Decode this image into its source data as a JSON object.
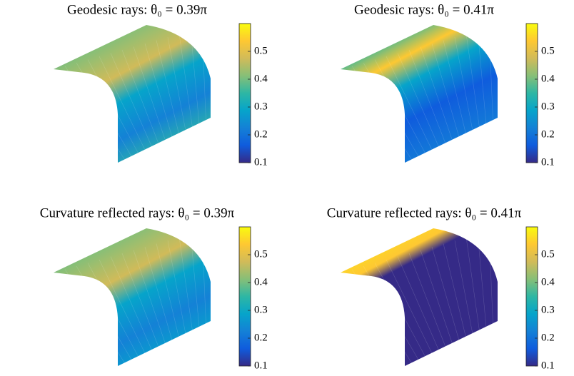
{
  "chart_data": [
    {
      "type": "surface",
      "title": "Geodesic rays: θ₀ = 0.39π",
      "clim": [
        0.1,
        0.6
      ],
      "cticks": [
        0.1,
        0.2,
        0.3,
        0.4,
        0.5
      ],
      "colormap": [
        "#352a87",
        "#0f5cdd",
        "#1481d6",
        "#06a4ca",
        "#2eb7a4",
        "#87bf77",
        "#d1bb59",
        "#fec832",
        "#f9fb0e"
      ]
    },
    {
      "type": "surface",
      "title": "Geodesic rays: θ₀ = 0.41π",
      "clim": [
        0.1,
        0.6
      ],
      "cticks": [
        0.1,
        0.2,
        0.3,
        0.4,
        0.5
      ],
      "colormap": [
        "#352a87",
        "#0f5cdd",
        "#1481d6",
        "#06a4ca",
        "#2eb7a4",
        "#87bf77",
        "#d1bb59",
        "#fec832",
        "#f9fb0e"
      ]
    },
    {
      "type": "surface",
      "title": "Curvature reflected rays: θ₀ = 0.39π",
      "clim": [
        0.1,
        0.6
      ],
      "cticks": [
        0.1,
        0.2,
        0.3,
        0.4,
        0.5
      ],
      "colormap": [
        "#352a87",
        "#0f5cdd",
        "#1481d6",
        "#06a4ca",
        "#2eb7a4",
        "#87bf77",
        "#d1bb59",
        "#fec832",
        "#f9fb0e"
      ]
    },
    {
      "type": "surface",
      "title": "Curvature reflected rays: θ₀ = 0.41π",
      "clim": [
        0.1,
        0.6
      ],
      "cticks": [
        0.1,
        0.2,
        0.3,
        0.4,
        0.5
      ],
      "colormap": [
        "#352a87",
        "#0f5cdd",
        "#1481d6",
        "#06a4ca",
        "#2eb7a4",
        "#87bf77",
        "#d1bb59",
        "#fec832",
        "#f9fb0e"
      ]
    }
  ]
}
